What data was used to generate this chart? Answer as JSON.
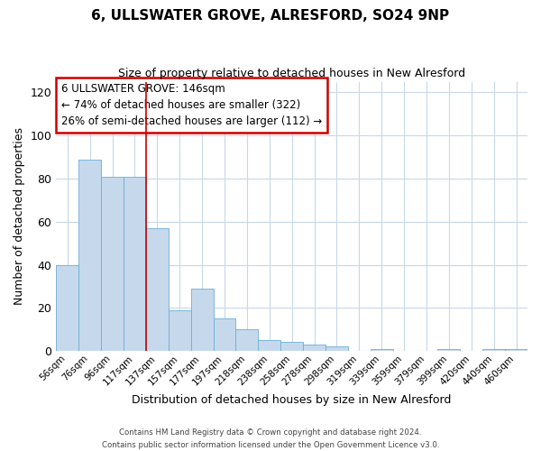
{
  "title": "6, ULLSWATER GROVE, ALRESFORD, SO24 9NP",
  "subtitle": "Size of property relative to detached houses in New Alresford",
  "xlabel": "Distribution of detached houses by size in New Alresford",
  "ylabel": "Number of detached properties",
  "bar_labels": [
    "56sqm",
    "76sqm",
    "96sqm",
    "117sqm",
    "137sqm",
    "157sqm",
    "177sqm",
    "197sqm",
    "218sqm",
    "238sqm",
    "258sqm",
    "278sqm",
    "298sqm",
    "319sqm",
    "339sqm",
    "359sqm",
    "379sqm",
    "399sqm",
    "420sqm",
    "440sqm",
    "460sqm"
  ],
  "bar_values": [
    40,
    89,
    81,
    81,
    57,
    19,
    29,
    15,
    10,
    5,
    4,
    3,
    2,
    0,
    1,
    0,
    0,
    1,
    0,
    1,
    1
  ],
  "bar_color": "#c6d9ec",
  "bar_edge_color": "#6aaed6",
  "ylim": [
    0,
    125
  ],
  "yticks": [
    0,
    20,
    40,
    60,
    80,
    100,
    120
  ],
  "red_line_x": 3.5,
  "annotation_title": "6 ULLSWATER GROVE: 146sqm",
  "annotation_line1": "← 74% of detached houses are smaller (322)",
  "annotation_line2": "26% of semi-detached houses are larger (112) →",
  "footer1": "Contains HM Land Registry data © Crown copyright and database right 2024.",
  "footer2": "Contains public sector information licensed under the Open Government Licence v3.0.",
  "background_color": "#ffffff",
  "grid_color": "#c8d8e8"
}
